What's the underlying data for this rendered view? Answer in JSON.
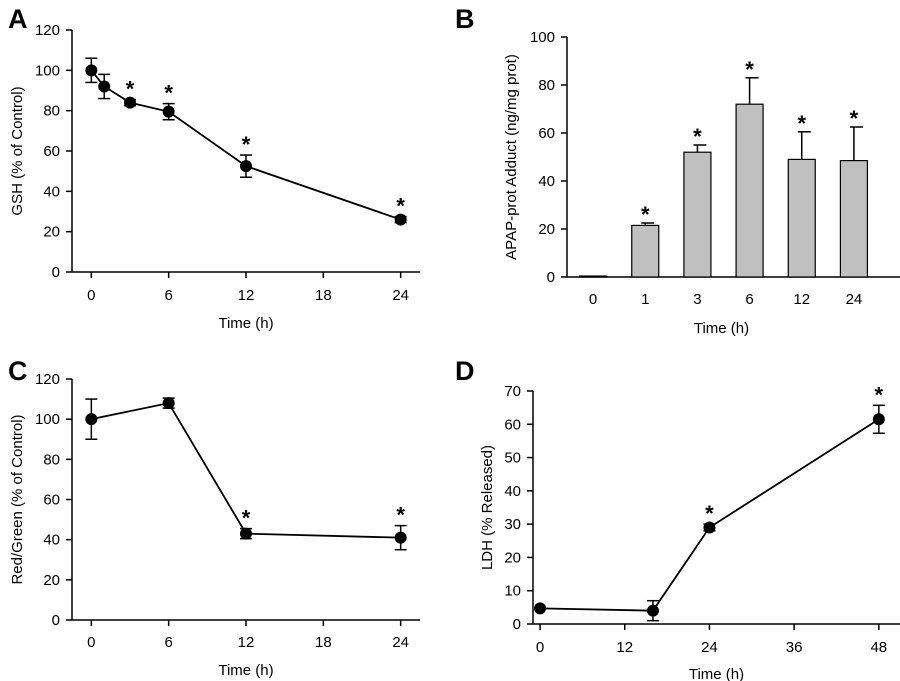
{
  "chart_data": [
    {
      "panel": "A",
      "type": "line",
      "x": [
        0,
        1,
        3,
        6,
        12,
        24
      ],
      "values": [
        100,
        92,
        84,
        79.5,
        52.5,
        26
      ],
      "errors": [
        6,
        6,
        1.5,
        4,
        5.5,
        1.5
      ],
      "significant": [
        false,
        false,
        true,
        true,
        true,
        true
      ],
      "xlabel": "Time (h)",
      "ylabel": "GSH (% of Control)",
      "xlim": [
        -1.5,
        25.5
      ],
      "ylim": [
        0,
        120
      ],
      "xticks": [
        0,
        6,
        12,
        18,
        24
      ],
      "yticks": [
        0,
        20,
        40,
        60,
        80,
        100,
        120
      ],
      "marker_color": "#000000"
    },
    {
      "panel": "B",
      "type": "bar",
      "categories": [
        "0",
        "1",
        "3",
        "6",
        "12",
        "24"
      ],
      "values": [
        0.4,
        21.5,
        52,
        72,
        49,
        48.5
      ],
      "errors": [
        0.3,
        1,
        3,
        11,
        11.5,
        14
      ],
      "significant": [
        false,
        true,
        true,
        true,
        true,
        true
      ],
      "xlabel": "Time (h)",
      "ylabel": "APAP-prot  Adduct (ng/mg prot)",
      "ylim": [
        0,
        100
      ],
      "yticks": [
        0,
        20,
        40,
        60,
        80,
        100
      ],
      "bar_color": "#c0c0c0"
    },
    {
      "panel": "C",
      "type": "line",
      "x": [
        0,
        6,
        12,
        24
      ],
      "values": [
        100,
        108,
        43,
        41
      ],
      "errors": [
        10,
        2.5,
        2.5,
        6
      ],
      "significant": [
        false,
        false,
        true,
        true
      ],
      "xlabel": "Time (h)",
      "ylabel": "Red/Green  (% of Control)",
      "xlim": [
        -1.5,
        25.5
      ],
      "ylim": [
        0,
        120
      ],
      "xticks": [
        0,
        6,
        12,
        18,
        24
      ],
      "yticks": [
        0,
        20,
        40,
        60,
        80,
        100,
        120
      ],
      "marker_color": "#000000"
    },
    {
      "panel": "D",
      "type": "line",
      "x": [
        0,
        16,
        24,
        48
      ],
      "values": [
        4.7,
        4,
        29,
        61.5
      ],
      "errors": [
        0.3,
        3,
        1,
        4.2
      ],
      "significant": [
        false,
        false,
        true,
        true
      ],
      "xlabel": "Time (h)",
      "ylabel": "LDH  (% Released)",
      "xlim": [
        -1,
        51
      ],
      "ylim": [
        0,
        70
      ],
      "xticks": [
        0,
        12,
        24,
        36,
        48
      ],
      "yticks": [
        0,
        10,
        20,
        30,
        40,
        50,
        60,
        70
      ],
      "marker_color": "#000000"
    }
  ]
}
